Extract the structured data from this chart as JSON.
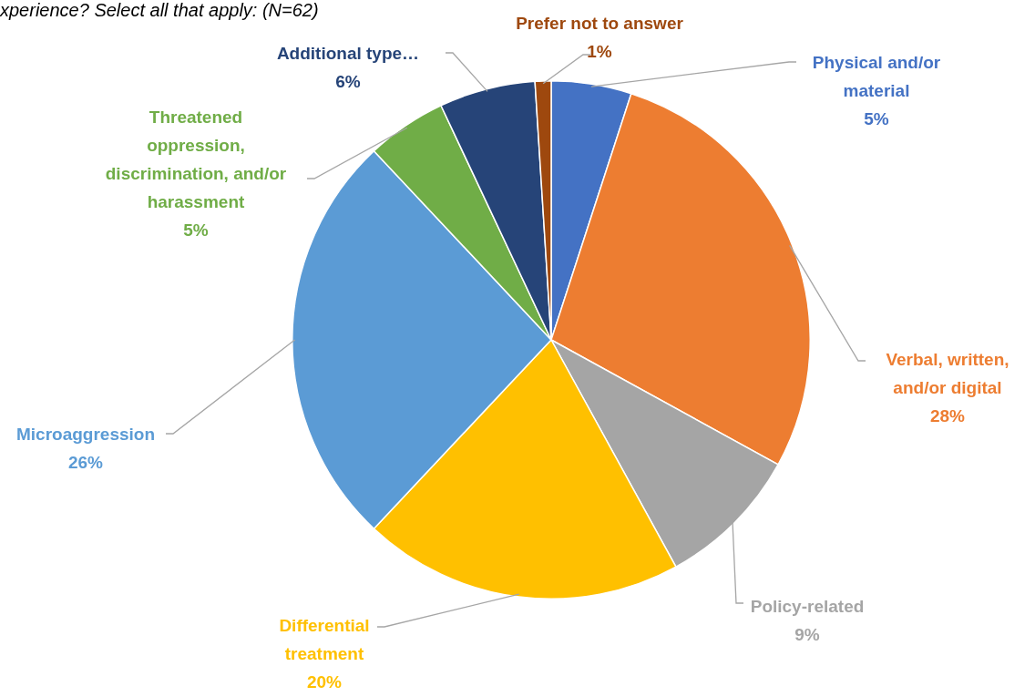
{
  "chart_data": {
    "type": "pie",
    "title": "xperience? Select all that apply: (N=62)",
    "categories": [
      "Physical and/or material",
      "Verbal, written, and/or digital",
      "Policy-related",
      "Differential treatment",
      "Microaggression",
      "Threatened oppression, discrimination, and/or harassment",
      "Additional type…",
      "Prefer not to answer"
    ],
    "values": [
      5,
      28,
      9,
      20,
      26,
      5,
      6,
      1
    ],
    "colors": [
      "#4472c4",
      "#ed7d31",
      "#a5a5a5",
      "#ffc000",
      "#5b9bd5",
      "#70ad47",
      "#264478",
      "#9e480e"
    ],
    "value_labels": [
      "5%",
      "28%",
      "9%",
      "20%",
      "26%",
      "5%",
      "6%",
      "1%"
    ],
    "legend": false
  }
}
